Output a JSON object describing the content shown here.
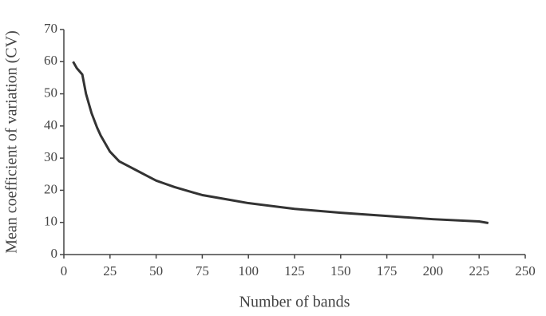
{
  "chart_data": {
    "type": "line",
    "x_label": "Number of bands",
    "y_label": "Mean coefficient of variation (CV)",
    "x": [
      5,
      7,
      10,
      12,
      15,
      18,
      20,
      25,
      30,
      35,
      40,
      45,
      50,
      55,
      60,
      70,
      75,
      90,
      100,
      125,
      150,
      175,
      200,
      225,
      230
    ],
    "values": [
      60,
      58,
      56,
      50,
      44,
      39.5,
      37,
      32,
      29,
      27.5,
      26,
      24.5,
      23,
      22,
      21,
      19.3,
      18.5,
      17,
      16,
      14.2,
      13,
      12,
      11,
      10.3,
      9.8
    ],
    "color": "#333333",
    "xlim": [
      0,
      250
    ],
    "xticks": [
      0,
      25,
      50,
      75,
      100,
      125,
      150,
      175,
      200,
      225,
      250
    ],
    "ylim": [
      0,
      70
    ],
    "yticks": [
      0,
      10,
      20,
      30,
      40,
      50,
      60,
      70
    ]
  }
}
